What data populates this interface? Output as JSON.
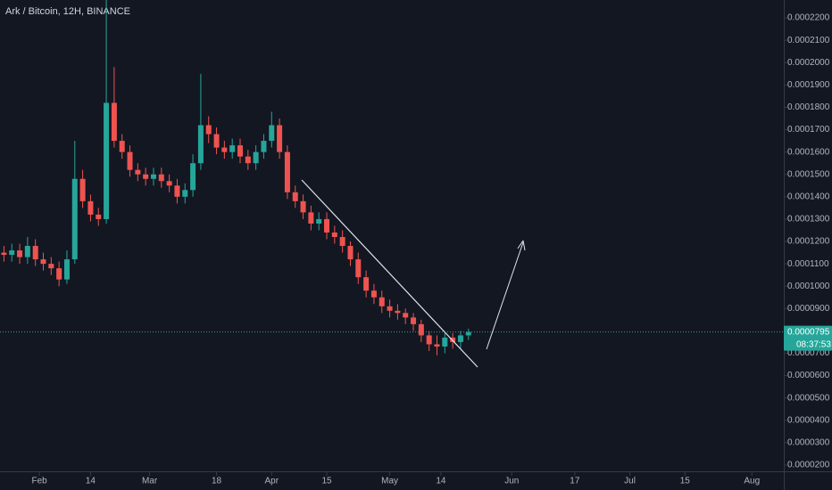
{
  "chart_data": {
    "type": "candlestick",
    "title": "Ark / Bitcoin, 12H, BINANCE",
    "x": [
      23,
      25,
      27,
      29,
      31,
      33,
      35,
      37,
      39,
      41,
      43,
      45,
      47,
      49,
      51,
      53,
      55,
      57,
      59,
      61,
      63,
      65,
      67,
      69,
      71,
      73,
      75,
      77,
      79,
      81,
      83,
      85,
      87,
      89,
      91,
      93,
      95,
      97,
      99,
      101,
      103,
      105,
      107,
      109,
      111,
      113,
      115,
      117,
      119,
      121,
      123,
      125,
      127,
      129,
      131,
      133,
      135,
      137,
      139,
      141
    ],
    "open": [
      0.000115,
      0.000114,
      0.000116,
      0.000113,
      0.000118,
      0.000112,
      0.00011,
      0.000108,
      0.000103,
      0.000112,
      0.000148,
      0.000138,
      0.000132,
      0.00013,
      0.000182,
      0.000165,
      0.00016,
      0.000152,
      0.00015,
      0.000148,
      0.00015,
      0.000147,
      0.000145,
      0.00014,
      0.000143,
      0.000155,
      0.000172,
      0.000168,
      0.000162,
      0.00016,
      0.000163,
      0.000158,
      0.000155,
      0.00016,
      0.000165,
      0.000172,
      0.00016,
      0.000142,
      0.000138,
      0.000133,
      0.000128,
      0.00013,
      0.000124,
      0.000122,
      0.000118,
      0.000112,
      0.000104,
      9.8e-05,
      9.5e-05,
      9.1e-05,
      8.9e-05,
      8.8e-05,
      8.6e-05,
      8.3e-05,
      7.8e-05,
      7.4e-05,
      7.3e-05,
      7.7e-05,
      7.5e-05,
      7.8e-05
    ],
    "high": [
      0.000118,
      0.000119,
      0.000119,
      0.000122,
      0.000121,
      0.000115,
      0.000113,
      0.000111,
      0.000116,
      0.000165,
      0.000152,
      0.000141,
      0.000135,
      0.000228,
      0.000198,
      0.000168,
      0.000163,
      0.000155,
      0.000153,
      0.000153,
      0.000153,
      0.00015,
      0.000148,
      0.000146,
      0.000159,
      0.000195,
      0.000176,
      0.000171,
      0.000165,
      0.000166,
      0.000166,
      0.000161,
      0.000163,
      0.000168,
      0.000178,
      0.000175,
      0.000163,
      0.000145,
      0.000141,
      0.000136,
      0.000133,
      0.000133,
      0.000127,
      0.000125,
      0.00012,
      0.000115,
      0.000107,
      0.000101,
      9.8e-05,
      9.4e-05,
      9.2e-05,
      9e-05,
      8.8e-05,
      8.5e-05,
      8e-05,
      7.8e-05,
      8e-05,
      7.9e-05,
      8e-05,
      8.1e-05
    ],
    "low": [
      0.000111,
      0.000111,
      0.00011,
      0.00011,
      0.000109,
      0.000107,
      0.000105,
      0.0001,
      0.000101,
      0.00011,
      0.000135,
      0.000129,
      0.000127,
      0.000128,
      0.000162,
      0.000157,
      0.000149,
      0.000147,
      0.000145,
      0.000145,
      0.000144,
      0.000142,
      0.000137,
      0.000137,
      0.00014,
      0.000152,
      0.000164,
      0.000159,
      0.000157,
      0.000157,
      0.000155,
      0.000152,
      0.000152,
      0.000157,
      0.000162,
      0.000157,
      0.000139,
      0.000135,
      0.00013,
      0.000125,
      0.000125,
      0.000121,
      0.000119,
      0.000115,
      0.000109,
      0.000101,
      9.5e-05,
      9.2e-05,
      8.8e-05,
      8.6e-05,
      8.5e-05,
      8.3e-05,
      8e-05,
      7.5e-05,
      7.1e-05,
      6.9e-05,
      7e-05,
      7.2e-05,
      7.2e-05,
      7.6e-05
    ],
    "close": [
      0.000114,
      0.000116,
      0.000113,
      0.000118,
      0.000112,
      0.00011,
      0.000108,
      0.000103,
      0.000112,
      0.000148,
      0.000138,
      0.000132,
      0.00013,
      0.000182,
      0.000165,
      0.00016,
      0.000152,
      0.00015,
      0.000148,
      0.00015,
      0.000147,
      0.000145,
      0.00014,
      0.000143,
      0.000155,
      0.000172,
      0.000168,
      0.000162,
      0.00016,
      0.000163,
      0.000158,
      0.000155,
      0.00016,
      0.000165,
      0.000172,
      0.00016,
      0.000142,
      0.000138,
      0.000133,
      0.000128,
      0.00013,
      0.000124,
      0.000122,
      0.000118,
      0.000112,
      0.000104,
      9.8e-05,
      9.5e-05,
      9.1e-05,
      8.9e-05,
      8.8e-05,
      8.6e-05,
      8.3e-05,
      7.8e-05,
      7.4e-05,
      7.3e-05,
      7.7e-05,
      7.5e-05,
      7.8e-05,
      7.95e-05
    ],
    "up_color": "#26a69a",
    "down_color": "#ef5350",
    "xlim": [
      22,
      221.1
    ],
    "xticks": [
      {
        "value": 32,
        "label": "Feb"
      },
      {
        "value": 45,
        "label": "14"
      },
      {
        "value": 60,
        "label": "Mar"
      },
      {
        "value": 77,
        "label": "18"
      },
      {
        "value": 91,
        "label": "Apr"
      },
      {
        "value": 105,
        "label": "15"
      },
      {
        "value": 121,
        "label": "May"
      },
      {
        "value": 134,
        "label": "14"
      },
      {
        "value": 152,
        "label": "Jun"
      },
      {
        "value": 168,
        "label": "17"
      },
      {
        "value": 182,
        "label": "Jul"
      },
      {
        "value": 196,
        "label": "15"
      },
      {
        "value": 213,
        "label": "Aug"
      }
    ],
    "ylim": [
      1.68e-05,
      0.000228
    ],
    "yticks": [
      {
        "value": 0.00022,
        "label": "0.0002200"
      },
      {
        "value": 0.00021,
        "label": "0.0002100"
      },
      {
        "value": 0.0002,
        "label": "0.0002000"
      },
      {
        "value": 0.00019,
        "label": "0.0001900"
      },
      {
        "value": 0.00018,
        "label": "0.0001800"
      },
      {
        "value": 0.00017,
        "label": "0.0001700"
      },
      {
        "value": 0.00016,
        "label": "0.0001600"
      },
      {
        "value": 0.00015,
        "label": "0.0001500"
      },
      {
        "value": 0.00014,
        "label": "0.0001400"
      },
      {
        "value": 0.00013,
        "label": "0.0001300"
      },
      {
        "value": 0.00012,
        "label": "0.0001200"
      },
      {
        "value": 0.00011,
        "label": "0.0001100"
      },
      {
        "value": 0.0001,
        "label": "0.0001000"
      },
      {
        "value": 9e-05,
        "label": "0.0000900"
      },
      {
        "value": 7e-05,
        "label": "0.0000700"
      },
      {
        "value": 6e-05,
        "label": "0.0000600"
      },
      {
        "value": 5e-05,
        "label": "0.0000500"
      },
      {
        "value": 4e-05,
        "label": "0.0000400"
      },
      {
        "value": 3e-05,
        "label": "0.0000300"
      },
      {
        "value": 2e-05,
        "label": "0.0000200"
      }
    ],
    "last_price": 7.95e-05,
    "countdown": "08:37:53"
  }
}
